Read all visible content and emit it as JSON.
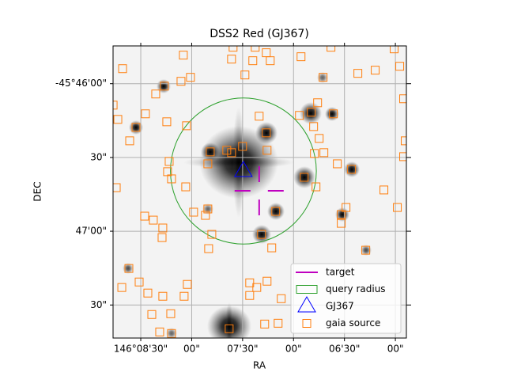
{
  "chart_data": {
    "type": "scatter",
    "title": "DSS2 Red (GJ367)",
    "x_label": "RA",
    "y_label": "DEC",
    "xlim": [
      146.1462,
      146.0982
    ],
    "ylim": [
      -45.7954,
      -45.7624
    ],
    "xticks": [
      {
        "value": 146.141667,
        "label": "146°08'30\""
      },
      {
        "value": 146.133333,
        "label": "00\""
      },
      {
        "value": 146.125,
        "label": "07'30\""
      },
      {
        "value": 146.116667,
        "label": "00\""
      },
      {
        "value": 146.108333,
        "label": "06'30\""
      },
      {
        "value": 146.1,
        "label": "00\""
      }
    ],
    "yticks": [
      {
        "value": -45.766667,
        "label": "-45°46'00\""
      },
      {
        "value": -45.775,
        "label": "30\""
      },
      {
        "value": -45.783333,
        "label": "47'00\""
      },
      {
        "value": -45.791667,
        "label": "30\""
      }
    ],
    "grid": true,
    "legend": "lower right",
    "series": [
      {
        "name": "target",
        "color": "#bf00bf",
        "marker": "cross",
        "x": [
          146.12229
        ],
        "y": [
          -45.77877
        ]
      },
      {
        "name": "query radius",
        "color": "#2ca02c",
        "marker": "circle",
        "x": [
          146.12487
        ],
        "y": [
          -45.77653
        ],
        "radius": 0.00825
      },
      {
        "name": "GJ367",
        "color": "#0000ff",
        "marker": "triangle",
        "x": [
          146.12487
        ],
        "y": [
          -45.77653
        ]
      },
      {
        "name": "gaia source",
        "color": "#ff7f0e",
        "marker": "square",
        "x": [
          146.14464,
          146.1347,
          146.12681,
          146.12656,
          146.12294,
          146.12333,
          146.12113,
          146.12048,
          146.11544,
          146.11054,
          146.1002,
          146.10614,
          146.1033,
          146.09929,
          146.11183,
          146.12462,
          146.13353,
          146.13508,
          146.1378,
          146.13922,
          146.14619,
          146.1409,
          146.14245,
          146.14542,
          146.13741,
          146.13418,
          146.14348,
          146.11273,
          146.11377,
          146.11015,
          146.09865,
          146.1157,
          146.12229,
          146.12113,
          146.11338,
          146.11247,
          146.121,
          146.12501,
          146.12759,
          146.12681,
          146.1303,
          146.13069,
          146.13702,
          146.13663,
          146.13431,
          146.14568,
          146.13728,
          146.11325,
          146.1117,
          146.1095,
          146.10718,
          146.11493,
          146.11299,
          146.10188,
          146.09839,
          146.09865,
          146.09968,
          146.10808,
          146.10886,
          146.10886,
          146.11958,
          146.13069,
          146.13108,
          146.13302,
          146.14103,
          146.13961,
          146.13806,
          146.13818,
          146.13004,
          146.12191,
          146.12023,
          146.13056,
          146.10485,
          146.14361,
          146.14193,
          146.14477,
          146.14051,
          146.13806,
          146.13457,
          146.13405,
          146.12384,
          146.12268,
          146.121,
          146.12384,
          146.11868,
          146.13986,
          146.13676,
          146.13857,
          146.13663,
          146.1272,
          146.12139,
          146.11919
        ],
        "y": [
          -45.76497,
          -45.76344,
          -45.76389,
          -45.76255,
          -45.76255,
          -45.76407,
          -45.76317,
          -45.76407,
          -45.76362,
          -45.76255,
          -45.76273,
          -45.7655,
          -45.76514,
          -45.7647,
          -45.76595,
          -45.76568,
          -45.76595,
          -45.7664,
          -45.76694,
          -45.76783,
          -45.76909,
          -45.77007,
          -45.7716,
          -45.7707,
          -45.77097,
          -45.77142,
          -45.77312,
          -45.76882,
          -45.76989,
          -45.77007,
          -45.76837,
          -45.77025,
          -45.77034,
          -45.77222,
          -45.77151,
          -45.77285,
          -45.77419,
          -45.77375,
          -45.77419,
          -45.77446,
          -45.77437,
          -45.77572,
          -45.77545,
          -45.77742,
          -45.77832,
          -45.77841,
          -45.77661,
          -45.77455,
          -45.77446,
          -45.77572,
          -45.77634,
          -45.77724,
          -45.77832,
          -45.77867,
          -45.77312,
          -45.77491,
          -45.78065,
          -45.78065,
          -45.78145,
          -45.78244,
          -45.78109,
          -45.78082,
          -45.78154,
          -45.78118,
          -45.78163,
          -45.78208,
          -45.78297,
          -45.78405,
          -45.78369,
          -45.78369,
          -45.78521,
          -45.7853,
          -45.78548,
          -45.78754,
          -45.78907,
          -45.78969,
          -45.79032,
          -45.79068,
          -45.79068,
          -45.78934,
          -45.78916,
          -45.78969,
          -45.78898,
          -45.79059,
          -45.79095,
          -45.79274,
          -45.79265,
          -45.79471,
          -45.79489,
          -45.79435,
          -45.79382,
          -45.79373
        ]
      }
    ]
  }
}
